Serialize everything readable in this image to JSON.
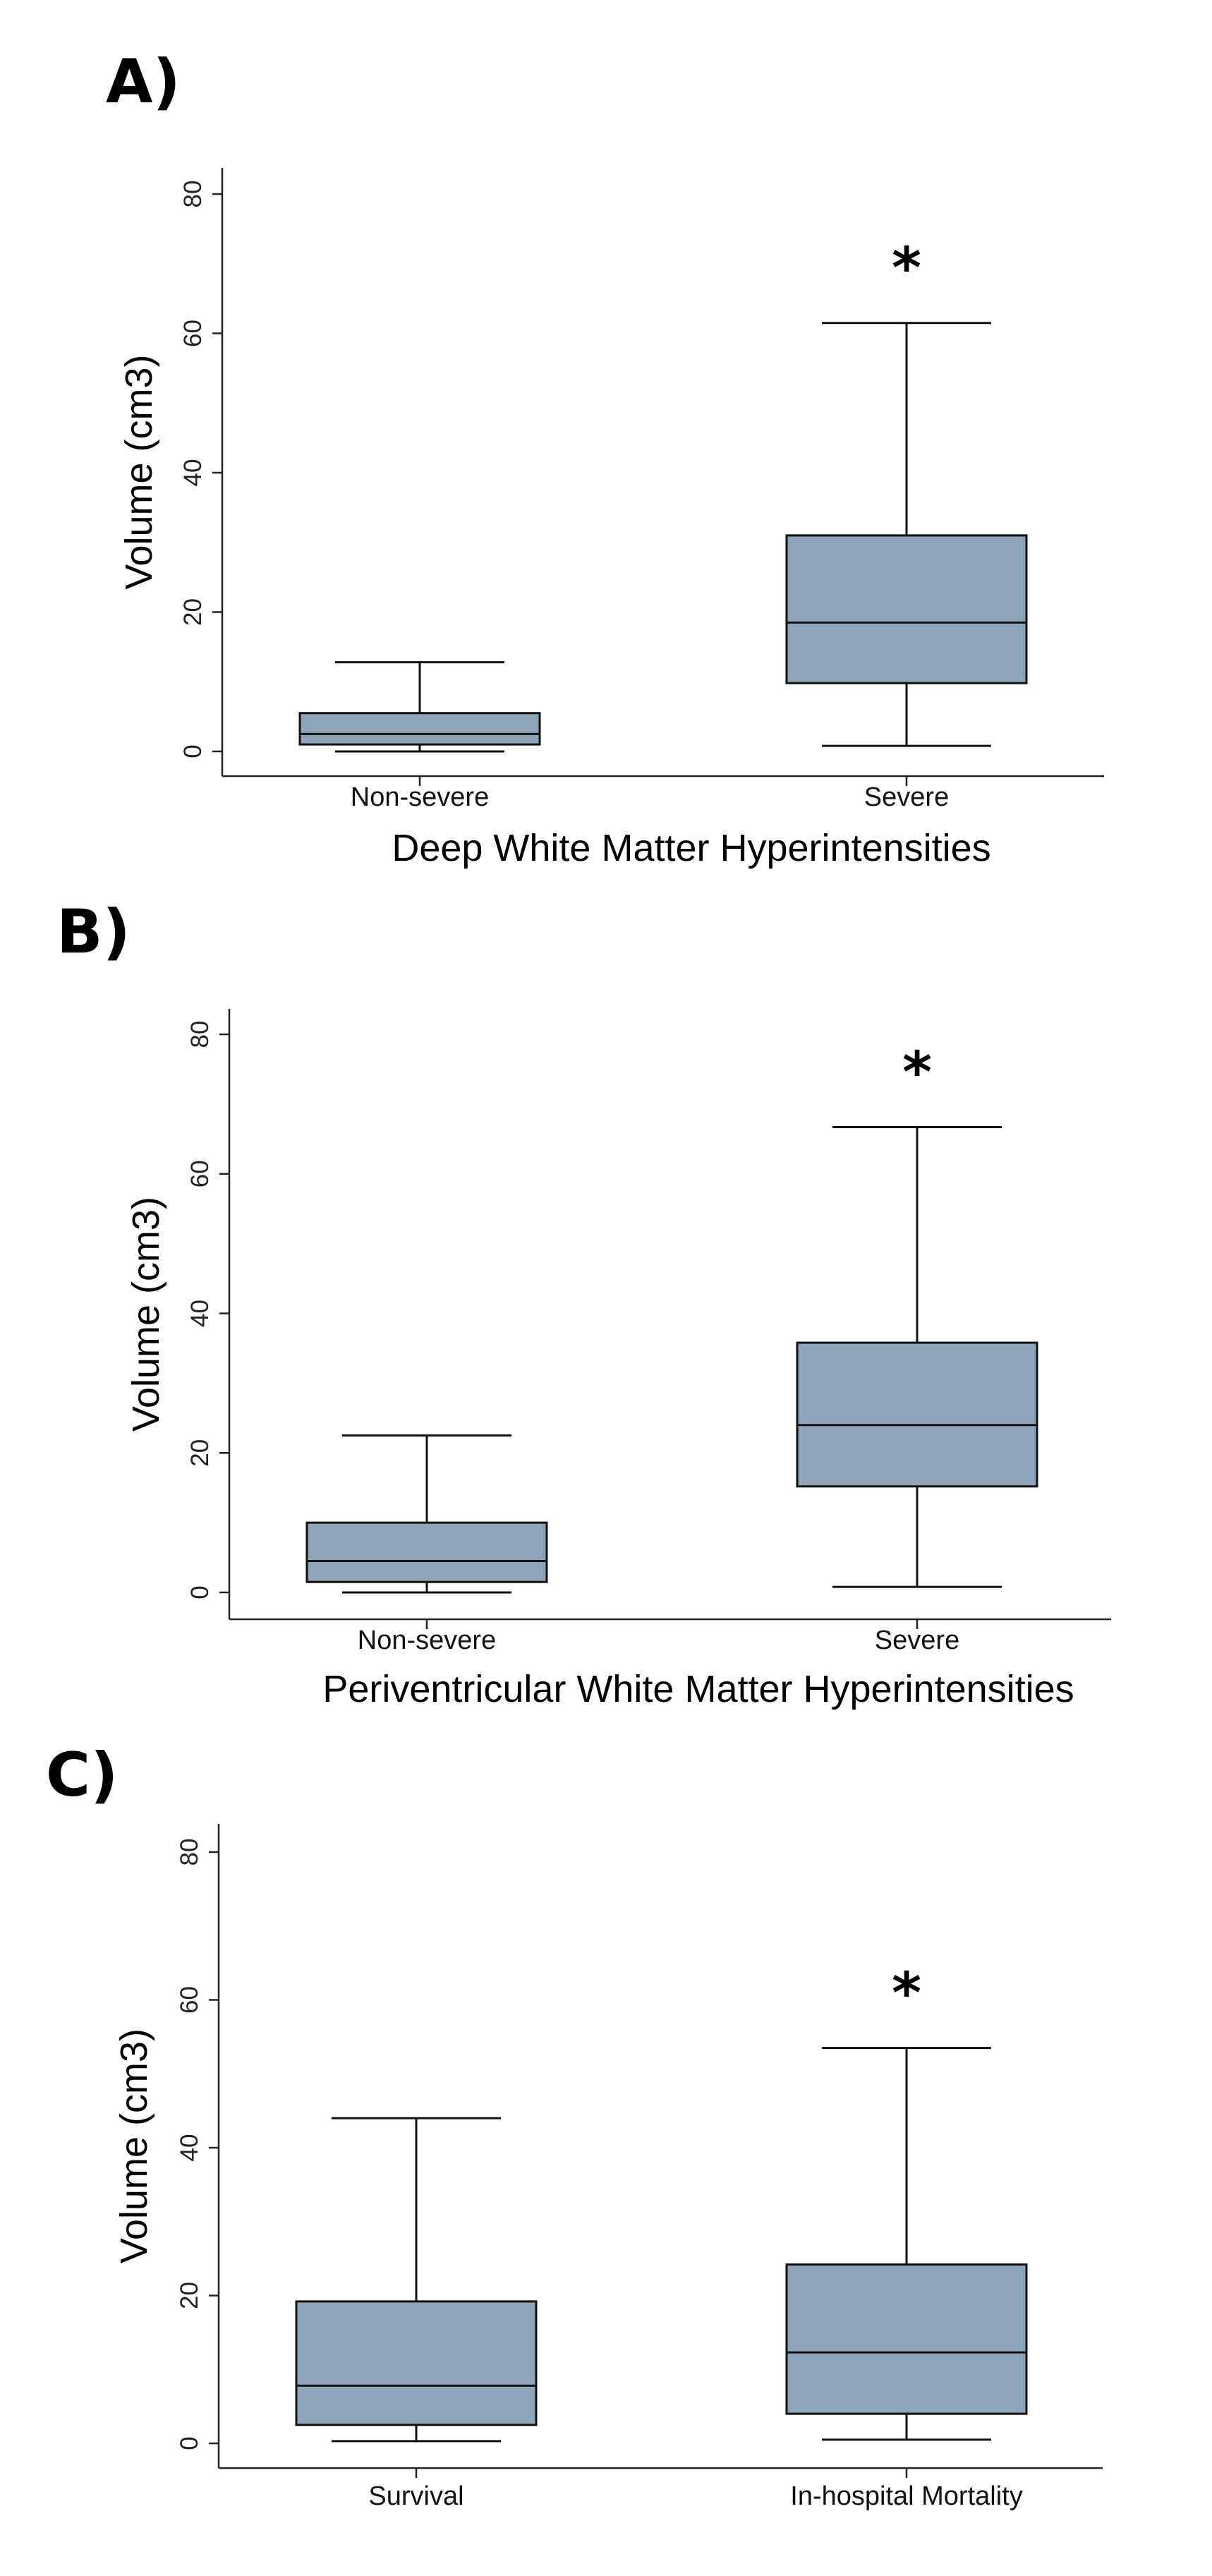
{
  "chart_data": [
    {
      "type": "box",
      "panel_label": "A)",
      "xlabel": "Deep White Matter Hyperintensities",
      "ylabel": "Volume (cm3)",
      "ylim": [
        0,
        80
      ],
      "yticks": [
        "0",
        "20",
        "40",
        "60",
        "80"
      ],
      "categories": [
        "Non-severe",
        "Severe"
      ],
      "boxes": [
        {
          "category": "Non-severe",
          "min": 0,
          "q1": 1.0,
          "median": 2.5,
          "q3": 5.5,
          "max": 12.8,
          "significance": ""
        },
        {
          "category": "Severe",
          "min": 0.8,
          "q1": 9.8,
          "median": 18.5,
          "q3": 31.0,
          "max": 61.5,
          "significance": "*"
        }
      ]
    },
    {
      "type": "box",
      "panel_label": "B)",
      "xlabel": "Periventricular White Matter Hyperintensities",
      "ylabel": "Volume (cm3)",
      "ylim": [
        0,
        80
      ],
      "yticks": [
        "0",
        "20",
        "40",
        "60",
        "80"
      ],
      "categories": [
        "Non-severe",
        "Severe"
      ],
      "boxes": [
        {
          "category": "Non-severe",
          "min": 0,
          "q1": 1.5,
          "median": 4.5,
          "q3": 10.0,
          "max": 22.5,
          "significance": ""
        },
        {
          "category": "Severe",
          "min": 0.8,
          "q1": 15.2,
          "median": 24.0,
          "q3": 35.8,
          "max": 66.7,
          "significance": "*"
        }
      ]
    },
    {
      "type": "box",
      "panel_label": "C)",
      "xlabel": "",
      "ylabel": "Volume (cm3)",
      "ylim": [
        0,
        80
      ],
      "yticks": [
        "0",
        "20",
        "40",
        "60",
        "80"
      ],
      "categories": [
        "Survival",
        "In-hospital Mortality"
      ],
      "boxes": [
        {
          "category": "Survival",
          "min": 0.3,
          "q1": 2.5,
          "median": 7.8,
          "q3": 19.2,
          "max": 44.0,
          "significance": ""
        },
        {
          "category": "In-hospital Mortality",
          "min": 0.5,
          "q1": 4.0,
          "median": 12.3,
          "q3": 24.2,
          "max": 53.5,
          "significance": "*"
        }
      ]
    }
  ]
}
